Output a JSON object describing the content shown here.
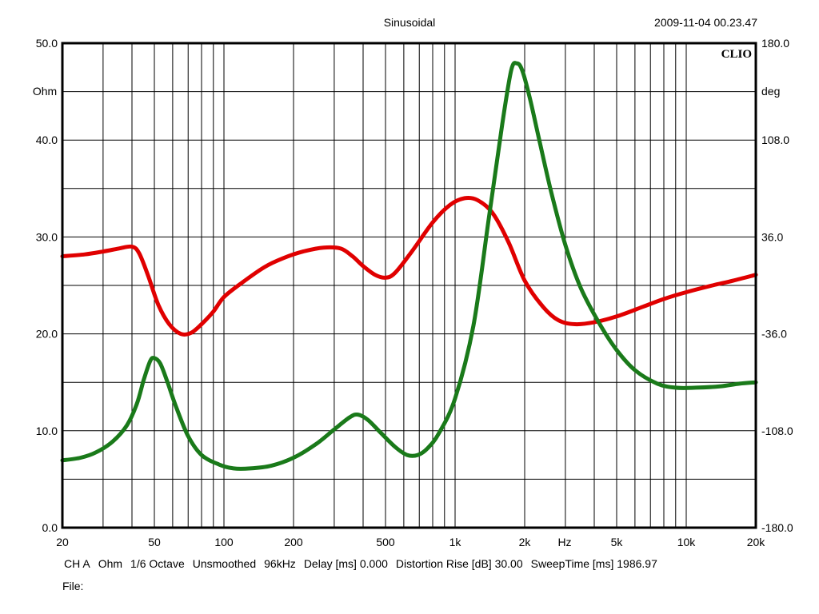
{
  "header": {
    "title": "Sinusoidal",
    "timestamp": "2009-11-04 00.23.47",
    "brand": "CLIO"
  },
  "footer": {
    "channel": "CH A",
    "unit": "Ohm",
    "resolution": "1/6 Octave",
    "smoothing": "Unsmoothed",
    "rate": "96kHz",
    "delay": "Delay [ms] 0.000",
    "distortion": "Distortion Rise [dB] 30.00",
    "sweep": "SweepTime [ms] 1986.97",
    "file_label": "File:"
  },
  "chart_data": {
    "type": "line",
    "title": "Sinusoidal",
    "x_scale": "log",
    "xlim": [
      20,
      20000
    ],
    "x_ticks": [
      20,
      50,
      100,
      200,
      500,
      1000,
      2000,
      5000,
      10000,
      20000
    ],
    "x_tick_labels": [
      "20",
      "50",
      "100",
      "200",
      "500",
      "1k",
      "2k",
      "5k",
      "10k",
      "20k"
    ],
    "x_unit_label": "Hz",
    "y_left": {
      "label": "Ohm",
      "lim": [
        0,
        50
      ],
      "ticks": [
        0,
        10,
        20,
        30,
        40,
        50
      ],
      "tick_labels": [
        "0.0",
        "10.0",
        "20.0",
        "30.0",
        "40.0",
        "50.0"
      ]
    },
    "y_right": {
      "label": "deg",
      "lim": [
        -180,
        180
      ],
      "ticks": [
        -180,
        -108,
        -36,
        36,
        108,
        180
      ],
      "tick_labels": [
        "-180.0",
        "-108.0",
        "-36.0",
        "36.0",
        "108.0",
        "180.0"
      ]
    },
    "grid": true,
    "series": [
      {
        "color": "#e00000",
        "axis": "left",
        "x": [
          20,
          25,
          30,
          35,
          40,
          43,
          47,
          52,
          58,
          65,
          72,
          80,
          90,
          100,
          120,
          150,
          180,
          220,
          270,
          320,
          360,
          400,
          450,
          500,
          550,
          650,
          800,
          950,
          1100,
          1250,
          1450,
          1700,
          2000,
          2400,
          2800,
          3300,
          4000,
          5000,
          6500,
          8000,
          10000,
          13000,
          16000,
          20000
        ],
        "values": [
          28.0,
          28.2,
          28.5,
          28.8,
          29.0,
          28.3,
          26.0,
          23.0,
          21.0,
          20.0,
          20.1,
          21.0,
          22.3,
          23.8,
          25.3,
          26.9,
          27.8,
          28.5,
          28.9,
          28.8,
          28.0,
          27.0,
          26.1,
          25.8,
          26.3,
          28.5,
          31.5,
          33.3,
          34.0,
          33.8,
          32.5,
          29.5,
          25.5,
          22.8,
          21.4,
          21.0,
          21.2,
          21.8,
          22.8,
          23.6,
          24.3,
          25.0,
          25.5,
          26.1
        ]
      },
      {
        "color": "#1a7a1a",
        "axis": "right",
        "x": [
          20,
          24,
          28,
          33,
          38,
          42,
          45,
          48,
          50,
          53,
          57,
          62,
          70,
          80,
          95,
          110,
          130,
          160,
          200,
          250,
          300,
          350,
          380,
          420,
          480,
          550,
          620,
          690,
          760,
          850,
          1000,
          1200,
          1400,
          1600,
          1750,
          1850,
          1950,
          2100,
          2300,
          2600,
          3000,
          3500,
          4200,
          5000,
          6000,
          7500,
          9000,
          11000,
          14000,
          17000,
          20000
        ],
        "values": [
          -130,
          -128,
          -124,
          -116,
          -104,
          -88,
          -70,
          -56,
          -54,
          -58,
          -72,
          -90,
          -112,
          -126,
          -133,
          -136,
          -136,
          -134,
          -128,
          -118,
          -107,
          -98,
          -96,
          -100,
          -110,
          -120,
          -126,
          -126,
          -121,
          -110,
          -84,
          -30,
          50,
          120,
          160,
          165,
          160,
          140,
          110,
          70,
          30,
          -2,
          -28,
          -48,
          -63,
          -73,
          -76,
          -76,
          -75,
          -73,
          -72
        ]
      }
    ]
  }
}
